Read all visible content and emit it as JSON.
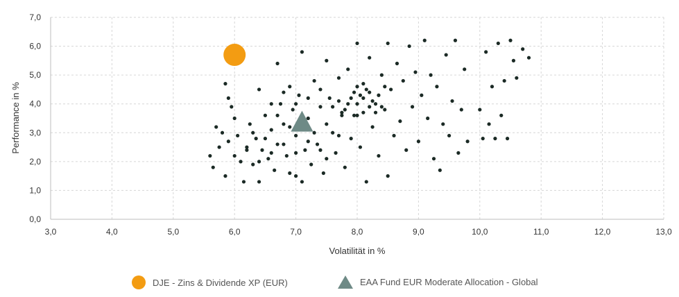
{
  "chart_data": {
    "type": "scatter",
    "xlabel": "Volatilität in %",
    "ylabel": "Performance in %",
    "xlim": [
      3.0,
      13.0
    ],
    "ylim": [
      0.0,
      7.0
    ],
    "x_ticks": [
      "3,0",
      "4,0",
      "5,0",
      "6,0",
      "7,0",
      "8,0",
      "9,0",
      "10,0",
      "11,0",
      "12,0",
      "13,0"
    ],
    "y_ticks": [
      "0,0",
      "1,0",
      "2,0",
      "3,0",
      "4,0",
      "5,0",
      "6,0",
      "7,0"
    ],
    "grid": true,
    "legend_position": "bottom",
    "series": [
      {
        "name": "DJE - Zins & Dividende XP (EUR)",
        "marker": "circle",
        "color": "#f39c12",
        "points": [
          {
            "x": 6.0,
            "y": 5.7
          }
        ]
      },
      {
        "name": "EAA Fund EUR Moderate Allocation - Global",
        "marker": "triangle",
        "color": "#6e8a86",
        "points": [
          {
            "x": 7.1,
            "y": 3.4
          }
        ]
      }
    ],
    "peer_cloud": {
      "color": "#1b2a25",
      "points": [
        [
          5.6,
          2.2
        ],
        [
          5.65,
          1.8
        ],
        [
          5.7,
          3.2
        ],
        [
          5.75,
          2.5
        ],
        [
          5.8,
          3.0
        ],
        [
          5.85,
          1.5
        ],
        [
          5.9,
          2.7
        ],
        [
          5.85,
          4.7
        ],
        [
          5.9,
          4.2
        ],
        [
          5.95,
          3.9
        ],
        [
          6.0,
          3.5
        ],
        [
          6.05,
          2.9
        ],
        [
          6.1,
          2.0
        ],
        [
          6.15,
          1.3
        ],
        [
          6.2,
          2.5
        ],
        [
          6.25,
          3.3
        ],
        [
          6.3,
          1.9
        ],
        [
          6.35,
          2.8
        ],
        [
          6.4,
          1.3
        ],
        [
          6.4,
          4.5
        ],
        [
          6.45,
          2.4
        ],
        [
          6.5,
          3.6
        ],
        [
          6.55,
          2.1
        ],
        [
          6.6,
          3.1
        ],
        [
          6.65,
          1.7
        ],
        [
          6.7,
          2.6
        ],
        [
          6.7,
          5.4
        ],
        [
          6.75,
          4.0
        ],
        [
          6.8,
          3.3
        ],
        [
          6.85,
          2.2
        ],
        [
          6.9,
          1.6
        ],
        [
          6.9,
          4.6
        ],
        [
          6.95,
          3.8
        ],
        [
          7.0,
          2.9
        ],
        [
          7.0,
          1.5
        ],
        [
          7.05,
          4.3
        ],
        [
          7.1,
          1.3
        ],
        [
          7.1,
          5.8
        ],
        [
          7.15,
          2.4
        ],
        [
          7.2,
          3.5
        ],
        [
          7.25,
          1.9
        ],
        [
          7.3,
          4.8
        ],
        [
          7.35,
          2.6
        ],
        [
          7.4,
          3.9
        ],
        [
          7.45,
          1.6
        ],
        [
          7.5,
          5.5
        ],
        [
          7.5,
          2.1
        ],
        [
          7.55,
          4.2
        ],
        [
          7.6,
          3.0
        ],
        [
          7.65,
          2.3
        ],
        [
          7.7,
          4.9
        ],
        [
          7.75,
          3.7
        ],
        [
          7.8,
          1.8
        ],
        [
          7.85,
          5.2
        ],
        [
          7.9,
          2.8
        ],
        [
          7.95,
          4.4
        ],
        [
          8.0,
          6.1
        ],
        [
          8.0,
          3.6
        ],
        [
          8.05,
          2.5
        ],
        [
          8.1,
          4.7
        ],
        [
          8.15,
          1.3
        ],
        [
          8.2,
          5.6
        ],
        [
          8.25,
          3.2
        ],
        [
          8.3,
          4.0
        ],
        [
          8.35,
          2.2
        ],
        [
          8.4,
          5.0
        ],
        [
          8.45,
          3.8
        ],
        [
          8.5,
          1.5
        ],
        [
          8.5,
          6.1
        ],
        [
          8.55,
          4.5
        ],
        [
          8.6,
          2.9
        ],
        [
          8.65,
          5.4
        ],
        [
          8.7,
          3.4
        ],
        [
          8.75,
          4.8
        ],
        [
          8.8,
          2.4
        ],
        [
          8.85,
          6.0
        ],
        [
          8.9,
          3.9
        ],
        [
          8.95,
          5.1
        ],
        [
          9.0,
          2.7
        ],
        [
          9.05,
          4.3
        ],
        [
          9.1,
          6.2
        ],
        [
          9.15,
          3.5
        ],
        [
          9.2,
          5.0
        ],
        [
          9.25,
          2.1
        ],
        [
          9.3,
          4.6
        ],
        [
          9.35,
          1.7
        ],
        [
          9.4,
          3.3
        ],
        [
          9.45,
          5.7
        ],
        [
          9.5,
          2.9
        ],
        [
          9.55,
          4.1
        ],
        [
          9.6,
          6.2
        ],
        [
          9.65,
          2.3
        ],
        [
          9.7,
          3.8
        ],
        [
          9.75,
          5.2
        ],
        [
          9.8,
          2.7
        ],
        [
          10.0,
          3.8
        ],
        [
          10.05,
          2.8
        ],
        [
          10.1,
          5.8
        ],
        [
          10.15,
          3.3
        ],
        [
          10.2,
          4.6
        ],
        [
          10.25,
          2.8
        ],
        [
          10.3,
          6.1
        ],
        [
          10.35,
          3.6
        ],
        [
          10.4,
          4.8
        ],
        [
          10.45,
          2.8
        ],
        [
          10.5,
          6.2
        ],
        [
          10.55,
          5.5
        ],
        [
          10.6,
          4.9
        ],
        [
          10.7,
          5.9
        ],
        [
          10.8,
          5.6
        ],
        [
          7.6,
          3.9
        ],
        [
          7.7,
          4.1
        ],
        [
          7.8,
          3.8
        ],
        [
          7.9,
          4.2
        ],
        [
          8.0,
          4.0
        ],
        [
          8.05,
          4.3
        ],
        [
          8.1,
          3.7
        ],
        [
          8.15,
          4.5
        ],
        [
          8.2,
          3.9
        ],
        [
          8.25,
          4.1
        ],
        [
          7.95,
          3.6
        ],
        [
          8.0,
          4.6
        ],
        [
          8.1,
          4.2
        ],
        [
          8.2,
          4.4
        ],
        [
          8.3,
          3.7
        ],
        [
          7.85,
          4.0
        ],
        [
          7.75,
          3.6
        ],
        [
          8.35,
          4.3
        ],
        [
          8.4,
          3.9
        ],
        [
          8.45,
          4.6
        ],
        [
          6.6,
          4.0
        ],
        [
          6.8,
          4.4
        ],
        [
          7.0,
          4.0
        ],
        [
          7.2,
          4.2
        ],
        [
          7.4,
          4.5
        ],
        [
          6.7,
          3.6
        ],
        [
          6.9,
          3.2
        ],
        [
          7.3,
          3.0
        ],
        [
          7.5,
          3.3
        ],
        [
          7.7,
          2.9
        ],
        [
          6.3,
          3.0
        ],
        [
          6.5,
          2.8
        ],
        [
          6.2,
          2.4
        ],
        [
          6.0,
          2.2
        ],
        [
          6.4,
          2.0
        ],
        [
          6.6,
          2.3
        ],
        [
          6.8,
          2.6
        ],
        [
          7.0,
          2.3
        ],
        [
          7.2,
          2.7
        ],
        [
          7.4,
          2.4
        ]
      ]
    }
  }
}
